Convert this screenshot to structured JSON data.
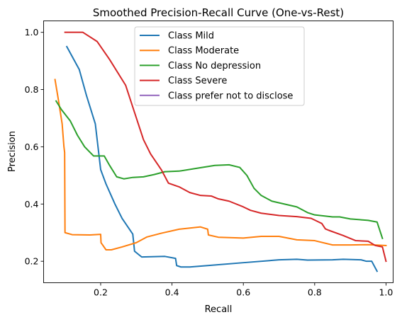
{
  "chart_data": {
    "type": "line",
    "title": "Smoothed Precision-Recall Curve (One-vs-Rest)",
    "xlabel": "Recall",
    "ylabel": "Precision",
    "xlim": [
      0.04,
      1.02
    ],
    "ylim": [
      0.125,
      1.04
    ],
    "xticks": [
      0.2,
      0.4,
      0.6,
      0.8,
      1.0
    ],
    "xtick_labels": [
      "0.2",
      "0.4",
      "0.6",
      "0.8",
      "1.0"
    ],
    "yticks": [
      0.2,
      0.4,
      0.6,
      0.8,
      1.0
    ],
    "ytick_labels": [
      "0.2",
      "0.4",
      "0.6",
      "0.8",
      "1.0"
    ],
    "grid": false,
    "legend_position": "upper-center",
    "series": [
      {
        "name": "Class Mild",
        "color": "#1f77b4",
        "points": [
          [
            0.105,
            0.95
          ],
          [
            0.14,
            0.87
          ],
          [
            0.16,
            0.78
          ],
          [
            0.185,
            0.68
          ],
          [
            0.2,
            0.52
          ],
          [
            0.215,
            0.47
          ],
          [
            0.24,
            0.4
          ],
          [
            0.26,
            0.35
          ],
          [
            0.29,
            0.295
          ],
          [
            0.295,
            0.235
          ],
          [
            0.315,
            0.215
          ],
          [
            0.38,
            0.217
          ],
          [
            0.41,
            0.21
          ],
          [
            0.413,
            0.185
          ],
          [
            0.425,
            0.18
          ],
          [
            0.45,
            0.18
          ],
          [
            0.5,
            0.185
          ],
          [
            0.6,
            0.195
          ],
          [
            0.7,
            0.205
          ],
          [
            0.75,
            0.207
          ],
          [
            0.78,
            0.204
          ],
          [
            0.85,
            0.205
          ],
          [
            0.88,
            0.207
          ],
          [
            0.93,
            0.205
          ],
          [
            0.945,
            0.2
          ],
          [
            0.96,
            0.2
          ],
          [
            0.975,
            0.165
          ]
        ]
      },
      {
        "name": "Class Moderate",
        "color": "#ff7f0e",
        "points": [
          [
            0.072,
            0.835
          ],
          [
            0.082,
            0.76
          ],
          [
            0.092,
            0.68
          ],
          [
            0.097,
            0.6
          ],
          [
            0.099,
            0.58
          ],
          [
            0.1,
            0.3
          ],
          [
            0.12,
            0.293
          ],
          [
            0.17,
            0.292
          ],
          [
            0.2,
            0.294
          ],
          [
            0.201,
            0.265
          ],
          [
            0.215,
            0.24
          ],
          [
            0.23,
            0.24
          ],
          [
            0.26,
            0.25
          ],
          [
            0.3,
            0.265
          ],
          [
            0.33,
            0.285
          ],
          [
            0.37,
            0.298
          ],
          [
            0.42,
            0.312
          ],
          [
            0.48,
            0.32
          ],
          [
            0.5,
            0.312
          ],
          [
            0.502,
            0.292
          ],
          [
            0.53,
            0.284
          ],
          [
            0.6,
            0.281
          ],
          [
            0.65,
            0.287
          ],
          [
            0.7,
            0.287
          ],
          [
            0.75,
            0.275
          ],
          [
            0.8,
            0.272
          ],
          [
            0.85,
            0.257
          ],
          [
            0.9,
            0.257
          ],
          [
            0.95,
            0.258
          ],
          [
            1.0,
            0.255
          ]
        ]
      },
      {
        "name": "Class No depression",
        "color": "#2ca02c",
        "points": [
          [
            0.075,
            0.76
          ],
          [
            0.09,
            0.73
          ],
          [
            0.115,
            0.69
          ],
          [
            0.135,
            0.64
          ],
          [
            0.155,
            0.6
          ],
          [
            0.18,
            0.568
          ],
          [
            0.21,
            0.568
          ],
          [
            0.225,
            0.535
          ],
          [
            0.245,
            0.495
          ],
          [
            0.265,
            0.488
          ],
          [
            0.29,
            0.493
          ],
          [
            0.32,
            0.495
          ],
          [
            0.35,
            0.503
          ],
          [
            0.38,
            0.513
          ],
          [
            0.42,
            0.515
          ],
          [
            0.47,
            0.525
          ],
          [
            0.52,
            0.535
          ],
          [
            0.56,
            0.537
          ],
          [
            0.59,
            0.528
          ],
          [
            0.61,
            0.5
          ],
          [
            0.63,
            0.455
          ],
          [
            0.65,
            0.43
          ],
          [
            0.68,
            0.41
          ],
          [
            0.75,
            0.39
          ],
          [
            0.78,
            0.37
          ],
          [
            0.8,
            0.362
          ],
          [
            0.85,
            0.355
          ],
          [
            0.87,
            0.355
          ],
          [
            0.9,
            0.348
          ],
          [
            0.95,
            0.343
          ],
          [
            0.975,
            0.337
          ],
          [
            0.99,
            0.28
          ]
        ]
      },
      {
        "name": "Class Severe",
        "color": "#d62728",
        "points": [
          [
            0.1,
            1.0
          ],
          [
            0.15,
            1.0
          ],
          [
            0.19,
            0.968
          ],
          [
            0.225,
            0.905
          ],
          [
            0.27,
            0.815
          ],
          [
            0.295,
            0.72
          ],
          [
            0.32,
            0.625
          ],
          [
            0.34,
            0.575
          ],
          [
            0.37,
            0.52
          ],
          [
            0.39,
            0.473
          ],
          [
            0.42,
            0.46
          ],
          [
            0.45,
            0.44
          ],
          [
            0.48,
            0.43
          ],
          [
            0.51,
            0.428
          ],
          [
            0.53,
            0.418
          ],
          [
            0.56,
            0.41
          ],
          [
            0.6,
            0.39
          ],
          [
            0.62,
            0.378
          ],
          [
            0.65,
            0.368
          ],
          [
            0.7,
            0.36
          ],
          [
            0.75,
            0.356
          ],
          [
            0.79,
            0.35
          ],
          [
            0.81,
            0.338
          ],
          [
            0.82,
            0.332
          ],
          [
            0.83,
            0.313
          ],
          [
            0.84,
            0.308
          ],
          [
            0.88,
            0.29
          ],
          [
            0.915,
            0.272
          ],
          [
            0.95,
            0.27
          ],
          [
            0.97,
            0.255
          ],
          [
            0.99,
            0.25
          ],
          [
            1.0,
            0.2
          ]
        ]
      },
      {
        "name": "Class prefer not to disclose",
        "color": "#9467bd",
        "points": []
      }
    ]
  }
}
